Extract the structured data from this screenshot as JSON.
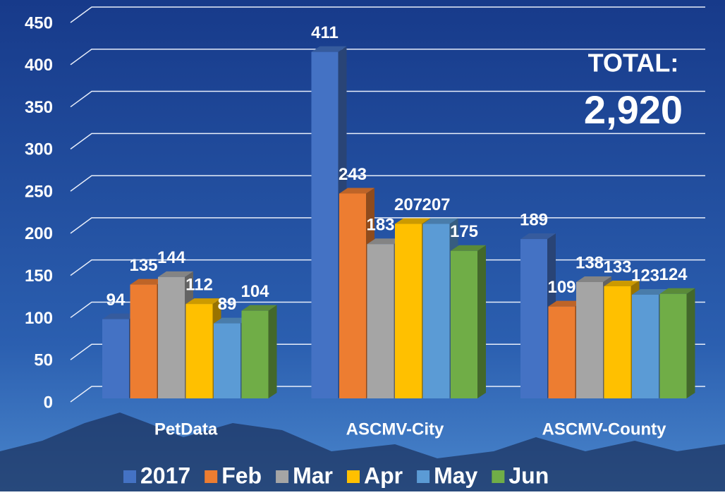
{
  "chart_data": {
    "type": "bar3d",
    "categories": [
      "PetData",
      "ASCMV-City",
      "ASCMV-County"
    ],
    "series": [
      {
        "name": "2017",
        "color": "#4472c4",
        "values": [
          94,
          411,
          189
        ]
      },
      {
        "name": "Feb",
        "color": "#ed7d31",
        "values": [
          135,
          243,
          109
        ]
      },
      {
        "name": "Mar",
        "color": "#a5a5a5",
        "values": [
          144,
          183,
          138
        ]
      },
      {
        "name": "Apr",
        "color": "#ffc000",
        "values": [
          112,
          207,
          133
        ]
      },
      {
        "name": "May",
        "color": "#5b9bd5",
        "values": [
          89,
          207,
          123
        ]
      },
      {
        "name": "Jun",
        "color": "#70ad47",
        "values": [
          104,
          175,
          124
        ]
      }
    ],
    "ylim": [
      0,
      450
    ],
    "yticks": [
      0,
      50,
      100,
      150,
      200,
      250,
      300,
      350,
      400,
      450
    ],
    "grid": true,
    "legend": "bottom",
    "annotations": [
      "TOTAL:",
      "2,920"
    ]
  }
}
